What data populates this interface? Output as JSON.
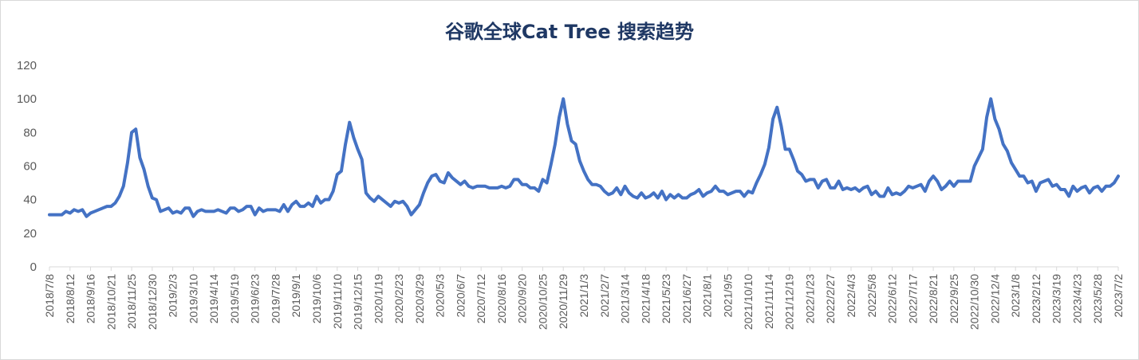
{
  "chart_data": {
    "type": "line",
    "title": "谷歌全球Cat Tree 搜索趋势",
    "xlabel": "",
    "ylabel": "",
    "ylim": [
      0,
      120
    ],
    "yticks": [
      0,
      20,
      40,
      60,
      80,
      100,
      120
    ],
    "grid": false,
    "legend": "none",
    "x_tick_labels": [
      "2018/7/8",
      "2018/8/12",
      "2018/9/16",
      "2018/10/21",
      "2018/11/25",
      "2018/12/30",
      "2019/2/3",
      "2019/3/10",
      "2019/4/14",
      "2019/5/19",
      "2019/6/23",
      "2019/7/28",
      "2019/9/1",
      "2019/10/6",
      "2019/11/10",
      "2019/12/15",
      "2020/1/19",
      "2020/2/23",
      "2020/3/29",
      "2020/5/3",
      "2020/6/7",
      "2020/7/12",
      "2020/8/16",
      "2020/9/20",
      "2020/10/25",
      "2020/11/29",
      "2021/1/3",
      "2021/2/7",
      "2021/3/14",
      "2021/4/18",
      "2021/5/23",
      "2021/6/27",
      "2021/8/1",
      "2021/9/5",
      "2021/10/10",
      "2021/11/14",
      "2021/12/19",
      "2022/1/23",
      "2022/2/27",
      "2022/4/3",
      "2022/5/8",
      "2022/6/12",
      "2022/7/17",
      "2022/8/21",
      "2022/9/25",
      "2022/10/30",
      "2022/12/4",
      "2023/1/8",
      "2023/2/12",
      "2023/3/19",
      "2023/4/23",
      "2023/5/28",
      "2023/7/2"
    ],
    "series": [
      {
        "color": "#4472c4",
        "values": [
          31,
          31,
          31,
          31,
          33,
          32,
          34,
          33,
          34,
          30,
          32,
          33,
          34,
          35,
          36,
          36,
          38,
          42,
          48,
          62,
          80,
          82,
          65,
          58,
          48,
          41,
          40,
          33,
          34,
          35,
          32,
          33,
          32,
          35,
          35,
          30,
          33,
          34,
          33,
          33,
          33,
          34,
          33,
          32,
          35,
          35,
          33,
          34,
          36,
          36,
          31,
          35,
          33,
          34,
          34,
          34,
          33,
          37,
          33,
          37,
          39,
          36,
          36,
          38,
          36,
          42,
          38,
          40,
          40,
          45,
          55,
          57,
          73,
          86,
          77,
          70,
          64,
          44,
          41,
          39,
          42,
          40,
          38,
          36,
          39,
          38,
          39,
          36,
          31,
          34,
          37,
          44,
          50,
          54,
          55,
          51,
          50,
          56,
          53,
          51,
          49,
          51,
          48,
          47,
          48,
          48,
          48,
          47,
          47,
          47,
          48,
          47,
          48,
          52,
          52,
          49,
          49,
          47,
          47,
          45,
          52,
          50,
          61,
          73,
          89,
          100,
          85,
          75,
          73,
          63,
          57,
          52,
          49,
          49,
          48,
          45,
          43,
          44,
          47,
          43,
          48,
          44,
          42,
          41,
          44,
          41,
          42,
          44,
          41,
          45,
          40,
          43,
          41,
          43,
          41,
          41,
          43,
          44,
          46,
          42,
          44,
          45,
          48,
          45,
          45,
          43,
          44,
          45,
          45,
          42,
          45,
          44,
          50,
          55,
          61,
          71,
          88,
          95,
          84,
          70,
          70,
          64,
          57,
          55,
          51,
          52,
          52,
          47,
          51,
          52,
          47,
          47,
          51,
          46,
          47,
          46,
          47,
          45,
          47,
          48,
          43,
          45,
          42,
          42,
          47,
          43,
          44,
          43,
          45,
          48,
          47,
          48,
          49,
          45,
          51,
          54,
          51,
          46,
          48,
          51,
          48,
          51,
          51,
          51,
          51,
          60,
          65,
          70,
          89,
          100,
          88,
          82,
          73,
          69,
          62,
          58,
          54,
          54,
          50,
          51,
          45,
          50,
          51,
          52,
          48,
          49,
          46,
          46,
          42,
          48,
          45,
          47,
          48,
          44,
          47,
          48,
          45,
          48,
          48,
          50,
          54
        ]
      }
    ]
  }
}
